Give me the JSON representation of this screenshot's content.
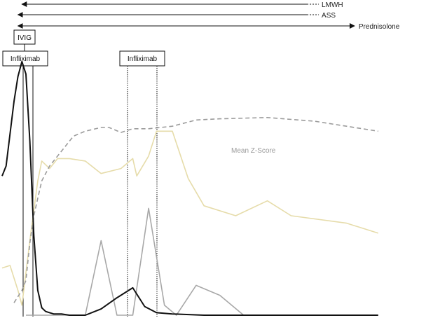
{
  "chart_data": {
    "type": "line",
    "title": "",
    "xlabel": "",
    "ylabel": "",
    "ylim": [
      0,
      100
    ],
    "grid": false,
    "legend": "none",
    "series": [
      {
        "key": "z",
        "name": "Mean Z-Score",
        "color": "#9b9b9b",
        "dashed": true,
        "points": [
          [
            0.0,
            5.0
          ],
          [
            1.0,
            10.0
          ],
          [
            1.5,
            14.0
          ],
          [
            2.0,
            29.0
          ],
          [
            2.5,
            40.0
          ],
          [
            3.0,
            47.0
          ],
          [
            3.5,
            54.0
          ],
          [
            4.5,
            60.0
          ],
          [
            6.0,
            66.0
          ],
          [
            7.5,
            72.0
          ],
          [
            9.0,
            74.0
          ],
          [
            11.0,
            75.5
          ],
          [
            12.0,
            75.5
          ],
          [
            13.5,
            73.5
          ],
          [
            15.0,
            75.0
          ],
          [
            17.0,
            75.0
          ],
          [
            20.0,
            76.0
          ],
          [
            23.0,
            78.5
          ],
          [
            26.0,
            79.0
          ],
          [
            32.0,
            79.5
          ],
          [
            38.0,
            78.0
          ],
          [
            43.0,
            75.5
          ],
          [
            46.0,
            74.0
          ]
        ]
      },
      {
        "key": "yellow",
        "name": "",
        "color": "#e6dcaa",
        "dashed": false,
        "points": [
          [
            -1.5,
            19.0
          ],
          [
            -0.5,
            20.0
          ],
          [
            0.5,
            10.0
          ],
          [
            1.0,
            4.0
          ],
          [
            2.0,
            30.0
          ],
          [
            3.0,
            54.0
          ],
          [
            3.5,
            62.0
          ],
          [
            4.5,
            59.0
          ],
          [
            5.5,
            63.0
          ],
          [
            7.0,
            63.0
          ],
          [
            9.0,
            62.0
          ],
          [
            11.0,
            57.0
          ],
          [
            13.5,
            59.0
          ],
          [
            15.0,
            63.0
          ],
          [
            15.5,
            56.0
          ],
          [
            17.0,
            64.0
          ],
          [
            18.0,
            74.0
          ],
          [
            20.0,
            74.0
          ],
          [
            22.0,
            55.0
          ],
          [
            24.0,
            44.0
          ],
          [
            28.0,
            40.0
          ],
          [
            32.0,
            46.0
          ],
          [
            35.0,
            40.0
          ],
          [
            42.0,
            37.0
          ],
          [
            46.0,
            33.0
          ]
        ]
      },
      {
        "key": "black",
        "name": "",
        "color": "#111111",
        "dashed": false,
        "points": [
          [
            -1.5,
            56.0
          ],
          [
            -1.0,
            60.0
          ],
          [
            0.0,
            86.0
          ],
          [
            0.5,
            96.0
          ],
          [
            1.0,
            102.0
          ],
          [
            1.5,
            97.0
          ],
          [
            2.0,
            70.0
          ],
          [
            2.5,
            32.0
          ],
          [
            3.0,
            10.0
          ],
          [
            3.5,
            3.0
          ],
          [
            4.0,
            1.5
          ],
          [
            5.0,
            0.5
          ],
          [
            6.0,
            0.5
          ],
          [
            7.0,
            0.0
          ],
          [
            8.0,
            0.0
          ],
          [
            9.0,
            0.0
          ],
          [
            11.0,
            2.5
          ],
          [
            13.0,
            7.0
          ],
          [
            15.0,
            11.0
          ],
          [
            16.5,
            3.5
          ],
          [
            18.0,
            1.0
          ],
          [
            20.0,
            0.5
          ],
          [
            24.0,
            0.0
          ],
          [
            46.0,
            0.0
          ]
        ]
      },
      {
        "key": "gray",
        "name": "",
        "color": "#a8a8a8",
        "dashed": false,
        "points": [
          [
            1.5,
            0.0
          ],
          [
            3.5,
            0.0
          ],
          [
            7.0,
            0.0
          ],
          [
            9.0,
            0.0
          ],
          [
            11.0,
            30.0
          ],
          [
            13.0,
            0.0
          ],
          [
            15.0,
            0.0
          ],
          [
            17.0,
            43.0
          ],
          [
            19.0,
            4.0
          ],
          [
            20.5,
            0.0
          ],
          [
            23.0,
            12.0
          ],
          [
            26.0,
            8.0
          ],
          [
            29.0,
            0.0
          ],
          [
            46.0,
            0.0
          ]
        ]
      }
    ],
    "annotations": [
      {
        "key": "lmwh",
        "label": "LMWH",
        "from": 1.0,
        "to": 37.0,
        "dashed_to": 38.5,
        "arrow_start": true,
        "arrow_end": false
      },
      {
        "key": "ass",
        "label": "ASS",
        "from": 0.5,
        "to": 37.0,
        "dashed_to": 38.5,
        "arrow_start": true,
        "arrow_end": false
      },
      {
        "key": "pred",
        "label": "Prednisolone",
        "from": 0.5,
        "to": 43.0,
        "dashed_to": null,
        "arrow_start": true,
        "arrow_end": true
      }
    ],
    "boxes": [
      {
        "key": "ivig",
        "label": "IVIG"
      },
      {
        "key": "infl1",
        "label": "Infliximab"
      },
      {
        "key": "infl2",
        "label": "Infliximab"
      }
    ],
    "series_label": "Mean Z-Score"
  }
}
